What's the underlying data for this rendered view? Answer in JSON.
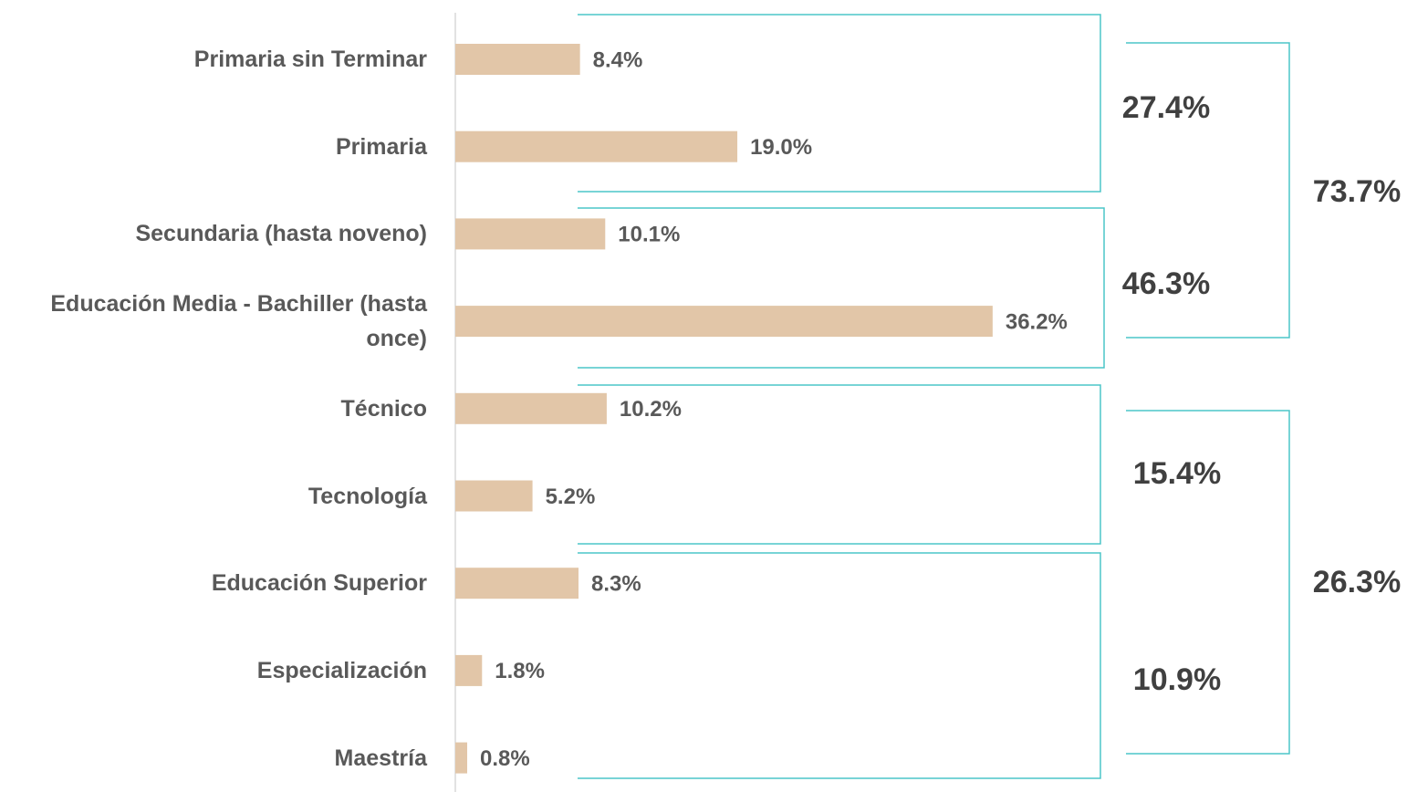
{
  "chart_data": {
    "type": "bar",
    "orientation": "horizontal",
    "categories": [
      "Primaria sin Terminar",
      "Primaria",
      "Secundaria (hasta noveno)",
      "Educación Media - Bachiller (hasta once)",
      "Técnico",
      "Tecnología",
      "Educación Superior",
      "Especialización",
      "Maestría"
    ],
    "values": [
      8.4,
      19.0,
      10.1,
      36.2,
      10.2,
      5.2,
      8.3,
      1.8,
      0.8
    ],
    "value_labels": [
      "8.4%",
      "19.0%",
      "10.1%",
      "36.2%",
      "10.2%",
      "5.2%",
      "8.3%",
      "1.8%",
      "0.8%"
    ],
    "color": "#e2c6a8",
    "xlim": [
      0,
      60
    ],
    "annotations": [
      "27.4%",
      "46.3%",
      "15.4%",
      "10.9%",
      "73.7%",
      "26.3%"
    ],
    "bracket_color": "#4cc5c8"
  }
}
